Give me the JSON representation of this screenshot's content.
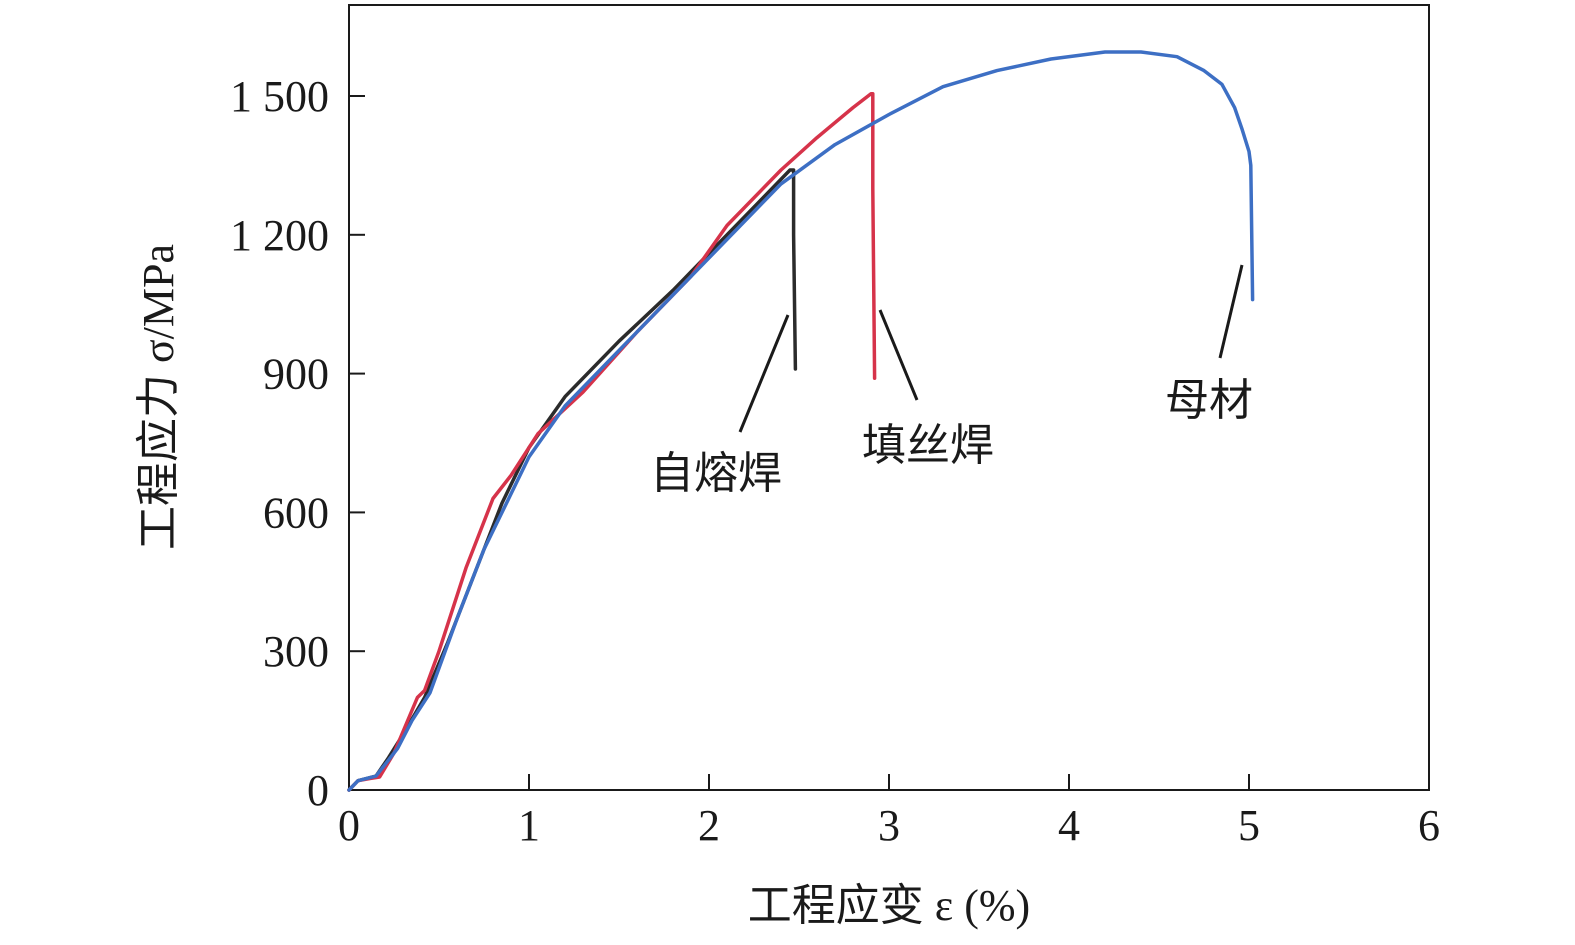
{
  "chart_data": {
    "type": "line",
    "xlabel": "工程应变 ε (%)",
    "ylabel": "工程应力 σ/MPa",
    "xlim": [
      0,
      6
    ],
    "ylim": [
      0,
      1700
    ],
    "xticks": [
      "0",
      "1",
      "2",
      "3",
      "4",
      "5",
      "6"
    ],
    "xtick_values": [
      0,
      1,
      2,
      3,
      4,
      5,
      6
    ],
    "yticks": [
      "0",
      "300",
      "600",
      "900",
      "1 200",
      "1 500"
    ],
    "ytick_values": [
      0,
      300,
      600,
      900,
      1200,
      1500
    ],
    "grid": false,
    "series": [
      {
        "name": "自熔焊",
        "color": "#2b2b2b",
        "points": [
          [
            0,
            0
          ],
          [
            0.05,
            20
          ],
          [
            0.15,
            30
          ],
          [
            0.22,
            70
          ],
          [
            0.3,
            120
          ],
          [
            0.42,
            200
          ],
          [
            0.55,
            320
          ],
          [
            0.7,
            470
          ],
          [
            0.85,
            620
          ],
          [
            1.0,
            740
          ],
          [
            1.2,
            850
          ],
          [
            1.5,
            970
          ],
          [
            1.8,
            1080
          ],
          [
            2.1,
            1200
          ],
          [
            2.3,
            1280
          ],
          [
            2.45,
            1340
          ],
          [
            2.47,
            1340
          ],
          [
            2.47,
            1200
          ],
          [
            2.48,
            910
          ]
        ]
      },
      {
        "name": "填丝焊",
        "color": "#d6334a",
        "points": [
          [
            0,
            0
          ],
          [
            0.05,
            20
          ],
          [
            0.12,
            25
          ],
          [
            0.17,
            28
          ],
          [
            0.25,
            80
          ],
          [
            0.38,
            200
          ],
          [
            0.42,
            215
          ],
          [
            0.5,
            300
          ],
          [
            0.65,
            480
          ],
          [
            0.8,
            630
          ],
          [
            0.9,
            680
          ],
          [
            1.05,
            770
          ],
          [
            1.3,
            860
          ],
          [
            1.6,
            990
          ],
          [
            1.9,
            1110
          ],
          [
            2.1,
            1220
          ],
          [
            2.4,
            1340
          ],
          [
            2.6,
            1410
          ],
          [
            2.8,
            1475
          ],
          [
            2.9,
            1505
          ],
          [
            2.91,
            1505
          ],
          [
            2.91,
            1300
          ],
          [
            2.92,
            890
          ]
        ]
      },
      {
        "name": "母材",
        "color": "#3d6fc4",
        "points": [
          [
            0,
            0
          ],
          [
            0.05,
            20
          ],
          [
            0.15,
            30
          ],
          [
            0.27,
            90
          ],
          [
            0.35,
            150
          ],
          [
            0.45,
            210
          ],
          [
            0.6,
            370
          ],
          [
            0.75,
            520
          ],
          [
            0.9,
            640
          ],
          [
            1.0,
            720
          ],
          [
            1.2,
            830
          ],
          [
            1.5,
            950
          ],
          [
            1.8,
            1070
          ],
          [
            2.1,
            1190
          ],
          [
            2.4,
            1310
          ],
          [
            2.7,
            1395
          ],
          [
            3.0,
            1460
          ],
          [
            3.3,
            1520
          ],
          [
            3.6,
            1555
          ],
          [
            3.9,
            1580
          ],
          [
            4.2,
            1595
          ],
          [
            4.4,
            1595
          ],
          [
            4.6,
            1585
          ],
          [
            4.75,
            1555
          ],
          [
            4.85,
            1525
          ],
          [
            4.92,
            1475
          ],
          [
            4.96,
            1430
          ],
          [
            5.0,
            1380
          ],
          [
            5.01,
            1350
          ],
          [
            5.02,
            1060
          ]
        ]
      }
    ],
    "annotations": [
      {
        "text": "自熔焊",
        "series": "自熔焊"
      },
      {
        "text": "填丝焊",
        "series": "填丝焊"
      },
      {
        "text": "母材",
        "series": "母材"
      }
    ]
  }
}
